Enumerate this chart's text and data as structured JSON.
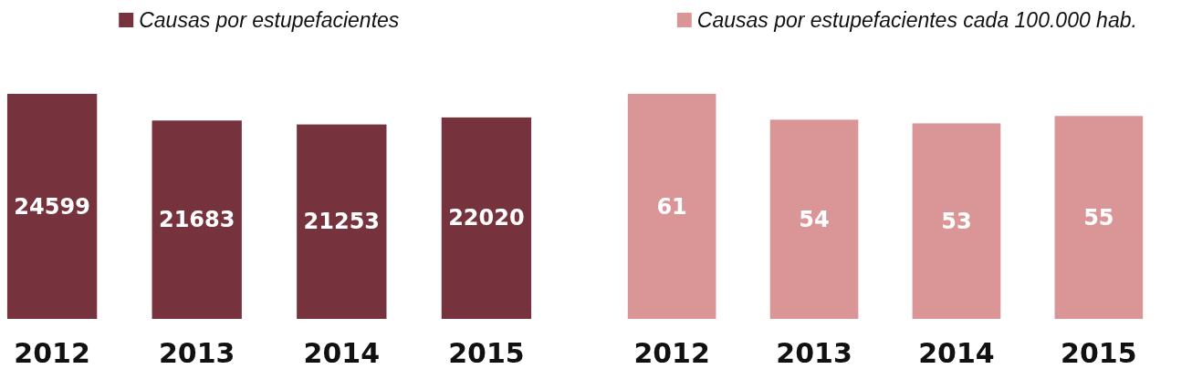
{
  "chart_data": [
    {
      "type": "bar",
      "categories": [
        "2012",
        "2013",
        "2014",
        "2015"
      ],
      "series": [
        {
          "name": "Causas por estupefacientes",
          "color": "#76333d",
          "values": [
            24599,
            21683,
            21253,
            22020
          ]
        }
      ],
      "data_labels": true,
      "legend": "top",
      "tick_labels": "x"
    },
    {
      "type": "bar",
      "categories": [
        "2012",
        "2013",
        "2014",
        "2015"
      ],
      "series": [
        {
          "name": "Causas por estupefacientes cada 100.000 hab.",
          "color": "#da9696",
          "values": [
            61,
            54,
            53,
            55
          ]
        }
      ],
      "data_labels": true,
      "legend": "top",
      "tick_labels": "x"
    }
  ]
}
